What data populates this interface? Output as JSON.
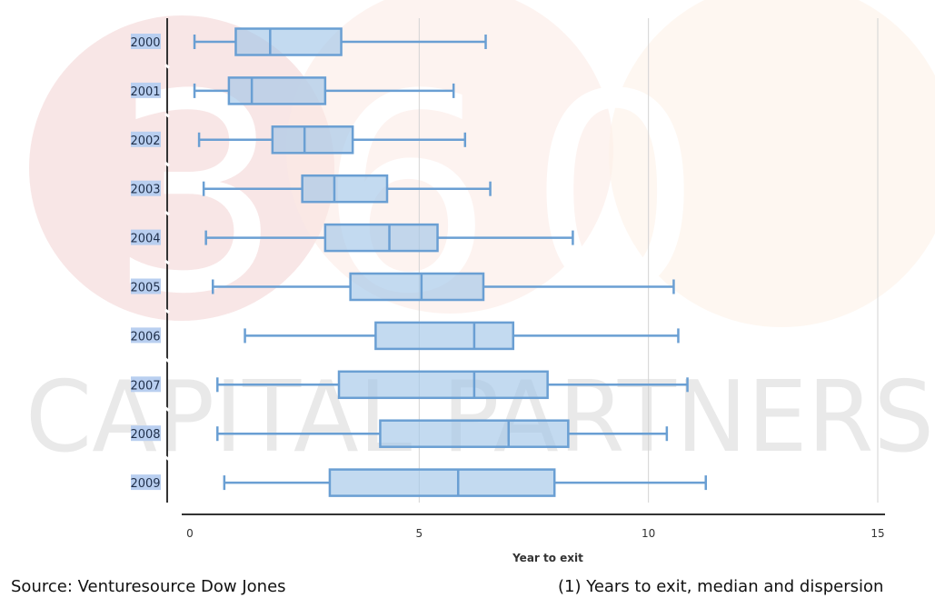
{
  "watermark": {
    "top_text": "360",
    "bottom_text": "CAPITAL PARTNERS",
    "colors": [
      "#f5dede",
      "#fbe9e3",
      "#fdf1e8"
    ]
  },
  "chart_data": {
    "type": "boxplot",
    "orientation": "horizontal",
    "categories": [
      "2000",
      "2001",
      "2002",
      "2003",
      "2004",
      "2005",
      "2006",
      "2007",
      "2008",
      "2009"
    ],
    "series": [
      {
        "min": [
          0.1,
          0.1,
          0.2,
          0.3,
          0.35,
          0.5,
          1.2,
          0.6,
          0.6,
          0.75
        ],
        "q1": [
          1.0,
          0.85,
          1.8,
          2.45,
          2.95,
          3.5,
          4.05,
          3.25,
          4.15,
          3.05
        ],
        "median": [
          1.75,
          1.35,
          2.5,
          3.15,
          4.35,
          5.05,
          6.2,
          6.2,
          6.95,
          5.85
        ],
        "q3": [
          3.3,
          2.95,
          3.55,
          4.3,
          5.4,
          6.4,
          7.05,
          7.8,
          8.25,
          7.95
        ],
        "max": [
          6.45,
          5.75,
          6.0,
          6.55,
          8.35,
          10.55,
          10.65,
          10.85,
          10.4,
          11.25
        ]
      }
    ],
    "xlabel": "Year to exit",
    "xlim": [
      0,
      15
    ],
    "xticks": [
      0,
      5,
      10,
      15
    ],
    "grid": true,
    "colors": {
      "box_fill": "#a3c6e8",
      "box_stroke": "#6a9fd3",
      "grid": "#d3d3d3"
    }
  },
  "footer": {
    "source": "Source: Venturesource Dow Jones",
    "note": "(1) Years to exit, median and dispersion"
  }
}
